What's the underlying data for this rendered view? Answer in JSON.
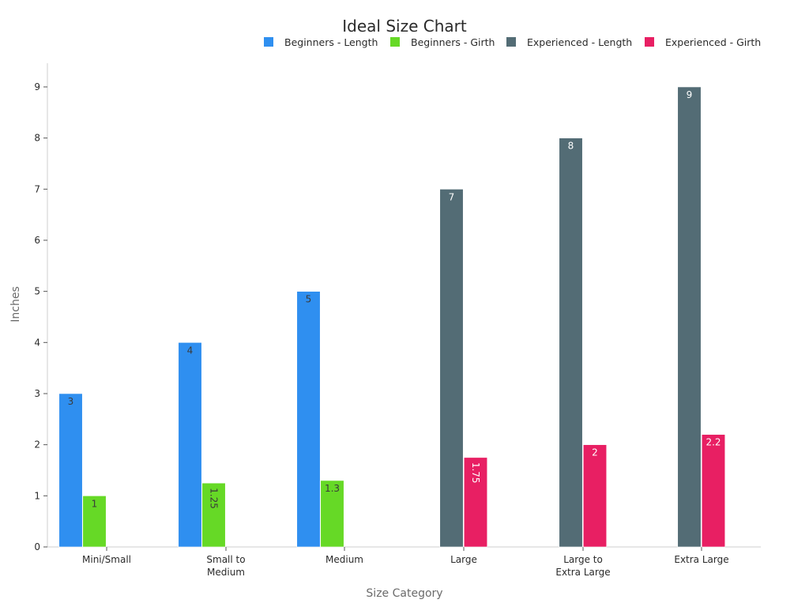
{
  "chart_data": {
    "type": "bar",
    "title": "Ideal Size Chart",
    "xlabel": "Size Category",
    "ylabel": "Inches",
    "ylim": [
      0,
      9.5
    ],
    "yticks": [
      0,
      1,
      2,
      3,
      4,
      5,
      6,
      7,
      8,
      9
    ],
    "grid": false,
    "legend_position": "top-right",
    "categories": [
      "Mini/Small",
      "Small to Medium",
      "Medium",
      "Large",
      "Large to Extra Large",
      "Extra Large"
    ],
    "category_labels": [
      [
        "Mini/Small"
      ],
      [
        "Small to",
        "Medium"
      ],
      [
        "Medium"
      ],
      [
        "Large"
      ],
      [
        "Large to",
        "Extra Large"
      ],
      [
        "Extra Large"
      ]
    ],
    "series": [
      {
        "name": "Beginners - Length",
        "color": "#2f8ff0",
        "label_color": "#3a3a3a",
        "values": [
          3,
          4,
          5,
          null,
          null,
          null
        ],
        "labels": [
          "3",
          "4",
          "5",
          "",
          "",
          ""
        ]
      },
      {
        "name": "Beginners - Girth",
        "color": "#66d926",
        "label_color": "#3a3a3a",
        "values": [
          1,
          1.25,
          1.3,
          null,
          null,
          null
        ],
        "labels": [
          "1",
          "1.25",
          "1.3",
          "",
          "",
          ""
        ]
      },
      {
        "name": "Experienced - Length",
        "color": "#536c75",
        "label_color": "#ffffff",
        "values": [
          null,
          null,
          null,
          7,
          8,
          9
        ],
        "labels": [
          "",
          "",
          "",
          "7",
          "8",
          "9"
        ]
      },
      {
        "name": "Experienced - Girth",
        "color": "#e81f63",
        "label_color": "#ffffff",
        "values": [
          null,
          null,
          null,
          1.75,
          2,
          2.2
        ],
        "labels": [
          "",
          "",
          "",
          "1.75",
          "2",
          "2.2"
        ]
      }
    ]
  }
}
